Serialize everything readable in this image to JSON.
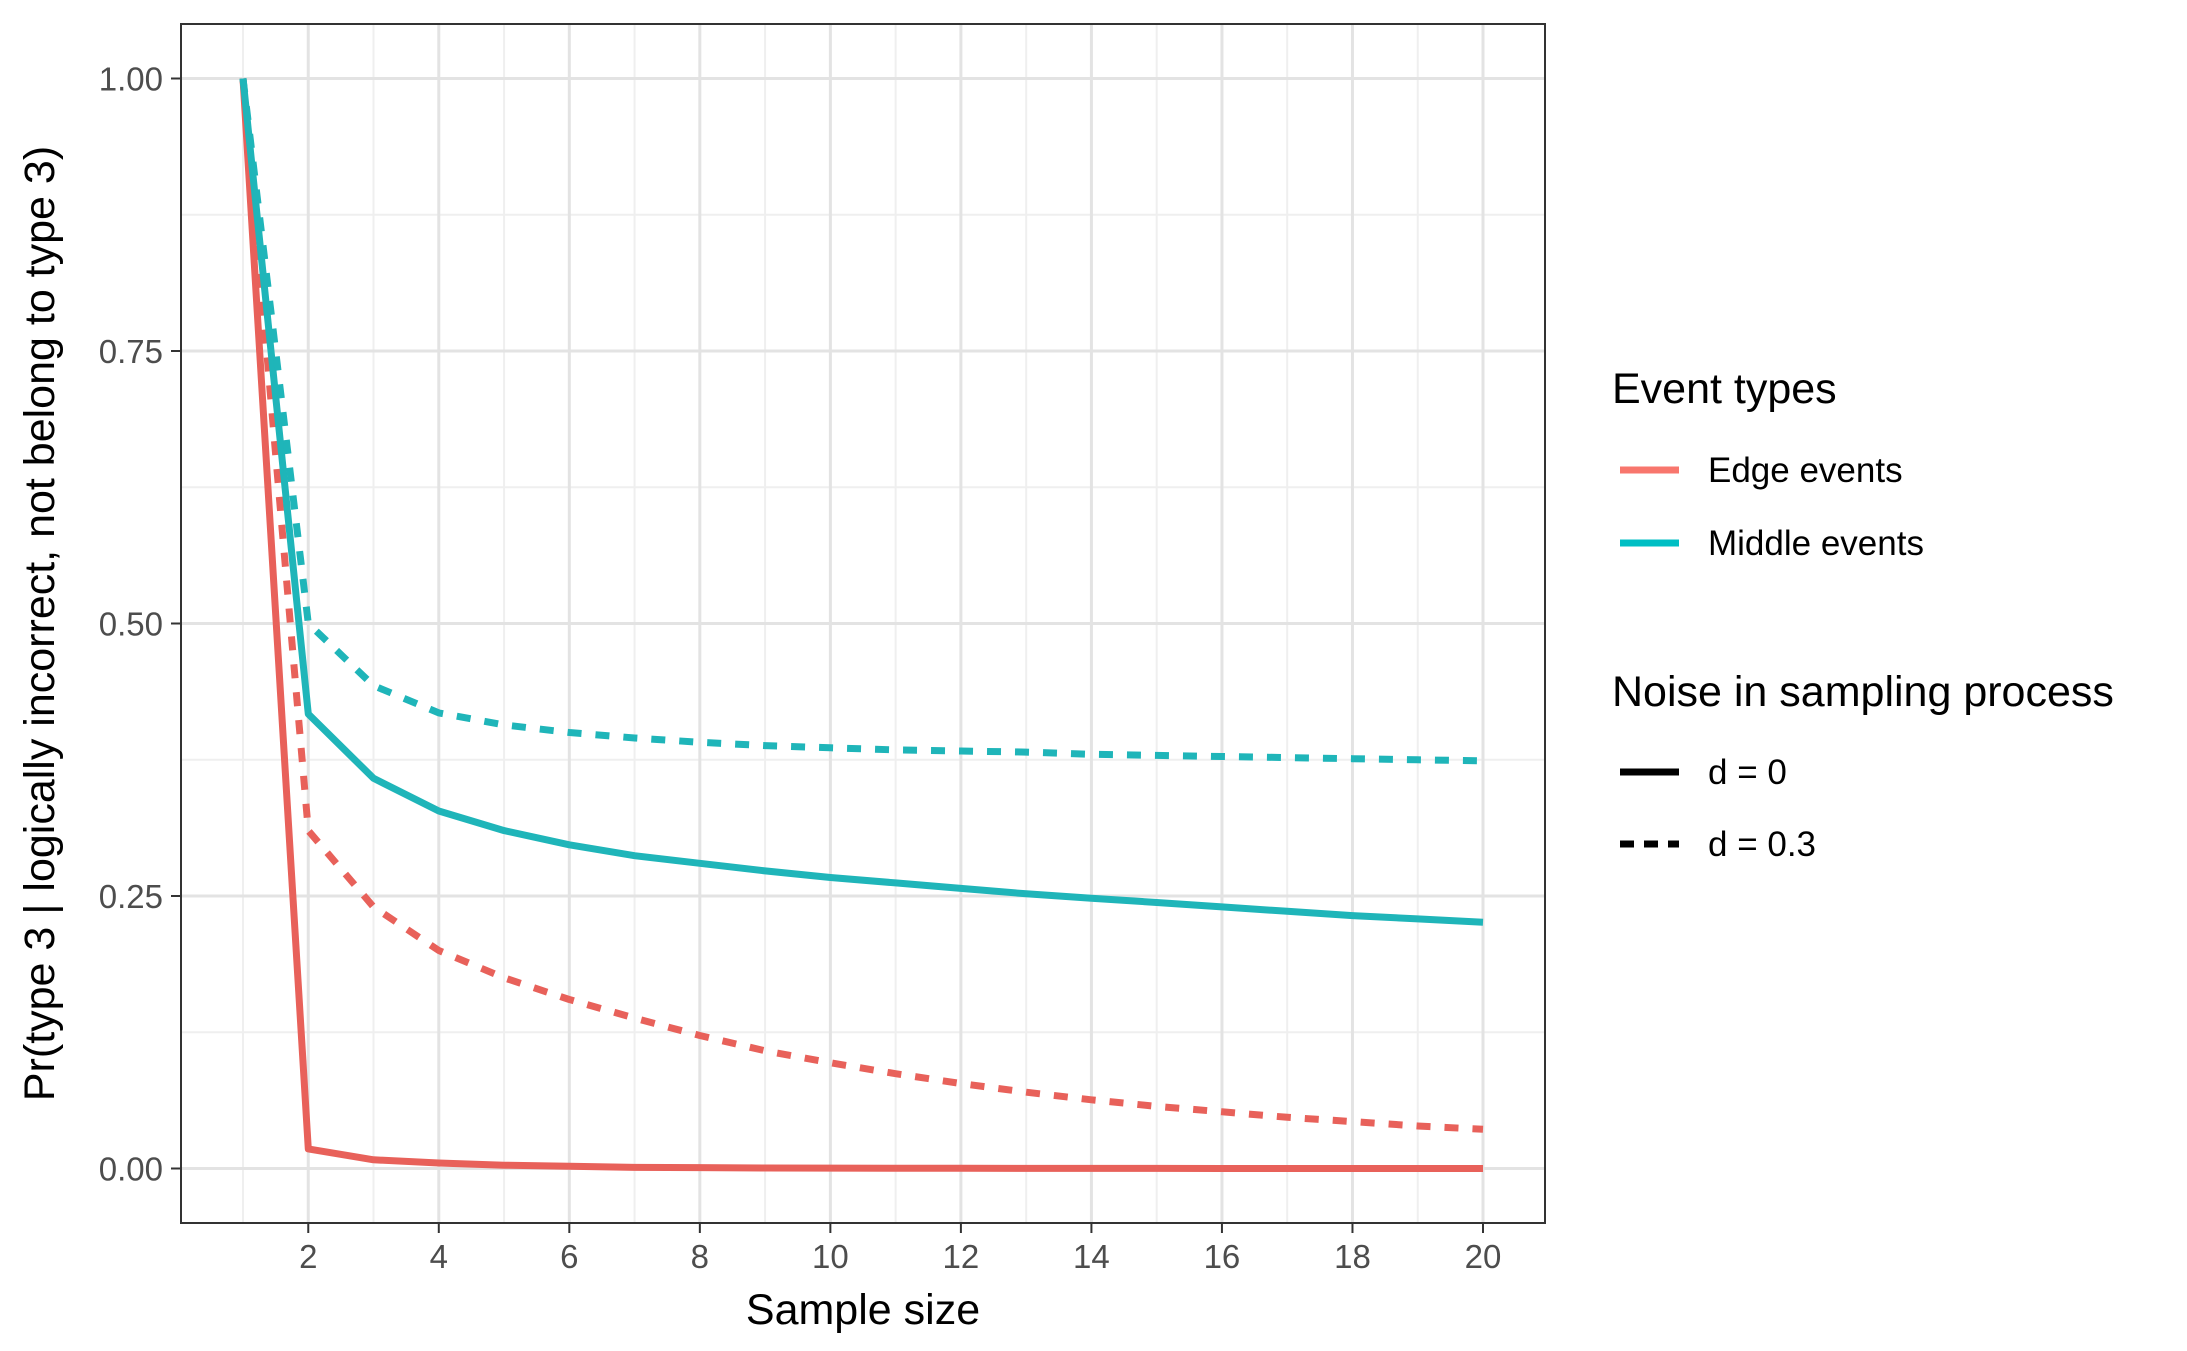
{
  "chart_data": {
    "type": "line",
    "xlabel": "Sample size",
    "ylabel": "Pr(type 3 | logically incorrect, not belong to type 3)",
    "xlim": [
      0.05,
      20.95
    ],
    "ylim": [
      -0.05,
      1.05
    ],
    "x_ticks": [
      2,
      4,
      6,
      8,
      10,
      12,
      14,
      16,
      18,
      20
    ],
    "x_tick_labels": [
      "2",
      "4",
      "6",
      "8",
      "10",
      "12",
      "14",
      "16",
      "18",
      "20"
    ],
    "y_ticks": [
      0,
      0.25,
      0.5,
      0.75,
      1
    ],
    "y_tick_labels": [
      "0.00",
      "0.25",
      "0.50",
      "0.75",
      "1.00"
    ],
    "grid": true,
    "legend_position": "right",
    "legends": [
      {
        "title": "Event types",
        "entries": [
          {
            "label": "Edge events",
            "color": "#F8766D",
            "style": "solid"
          },
          {
            "label": "Middle events",
            "color": "#00BFC4",
            "style": "solid"
          }
        ]
      },
      {
        "title": "Noise in sampling process",
        "entries": [
          {
            "label": "d = 0",
            "color": "#000000",
            "style": "solid"
          },
          {
            "label": "d = 0.3",
            "color": "#000000",
            "style": "dashed"
          }
        ]
      }
    ],
    "x": [
      1,
      2,
      3,
      4,
      5,
      6,
      7,
      8,
      9,
      10,
      11,
      12,
      13,
      14,
      15,
      16,
      17,
      18,
      19,
      20
    ],
    "series": [
      {
        "name": "Edge events, d = 0",
        "color": "#E8615A",
        "style": "solid",
        "values": [
          1.0,
          0.018,
          0.008,
          0.005,
          0.003,
          0.002,
          0.001,
          0.0008,
          0.0005,
          0.0004,
          0.0003,
          0.0002,
          0.0001,
          0.0001,
          0.0001,
          0.0,
          0.0,
          0.0,
          0.0,
          0.0
        ]
      },
      {
        "name": "Edge events, d = 0.3",
        "color": "#E8615A",
        "style": "dashed",
        "values": [
          1.0,
          0.31,
          0.24,
          0.2,
          0.175,
          0.155,
          0.138,
          0.122,
          0.108,
          0.097,
          0.087,
          0.078,
          0.07,
          0.063,
          0.057,
          0.052,
          0.047,
          0.043,
          0.039,
          0.036
        ]
      },
      {
        "name": "Middle events, d = 0",
        "color": "#1FB5B9",
        "style": "solid",
        "values": [
          1.0,
          0.417,
          0.358,
          0.328,
          0.31,
          0.297,
          0.287,
          0.28,
          0.273,
          0.267,
          0.262,
          0.257,
          0.252,
          0.248,
          0.244,
          0.24,
          0.236,
          0.232,
          0.229,
          0.226
        ]
      },
      {
        "name": "Middle events, d = 0.3",
        "color": "#1FB5B9",
        "style": "dashed",
        "values": [
          1.0,
          0.5,
          0.443,
          0.418,
          0.407,
          0.4,
          0.395,
          0.391,
          0.388,
          0.386,
          0.384,
          0.383,
          0.382,
          0.38,
          0.379,
          0.378,
          0.377,
          0.376,
          0.375,
          0.374
        ]
      }
    ]
  }
}
